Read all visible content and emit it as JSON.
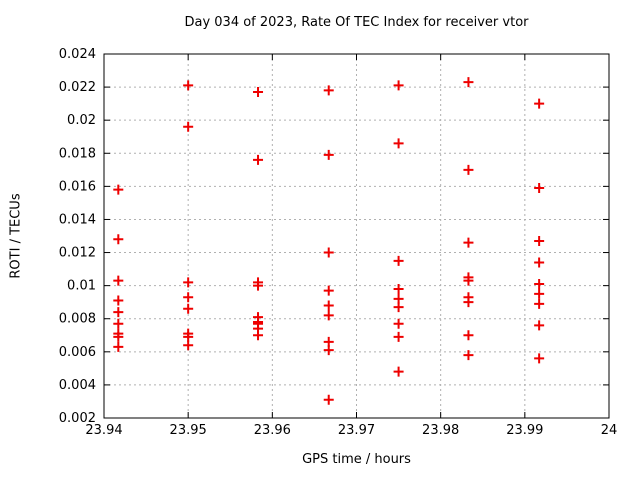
{
  "window": {
    "title": "Day 034 of 2023, Rate Of TEC Index for receiver vtor"
  },
  "chart_data": {
    "type": "scatter",
    "title": "Day 034 of 2023, Rate Of TEC Index for receiver vtor",
    "xlabel": "GPS time / hours",
    "ylabel": "ROTI / TECUs",
    "xlim": [
      23.94,
      24
    ],
    "ylim": [
      0.002,
      0.024
    ],
    "grid": true,
    "legend": "none",
    "marker": "plus",
    "marker_color": "#ee0000",
    "grid_color": "#b0b0b0",
    "border_color": "#000000",
    "xticks": {
      "values": [
        23.94,
        23.95,
        23.96,
        23.97,
        23.98,
        23.99,
        24
      ],
      "labels": [
        "23.94",
        "23.95",
        "23.96",
        "23.97",
        "23.98",
        "23.99",
        "24"
      ]
    },
    "yticks": {
      "values": [
        0.002,
        0.004,
        0.006,
        0.008,
        0.01,
        0.012,
        0.014,
        0.016,
        0.018,
        0.02,
        0.022,
        0.024
      ],
      "labels": [
        "0.002",
        "0.004",
        "0.006",
        "0.008",
        "0.01",
        "0.012",
        "0.014",
        "0.016",
        "0.018",
        "0.02",
        "0.022",
        "0.024"
      ]
    },
    "series": [
      {
        "name": "ROTI",
        "points": [
          [
            23.9417,
            0.0158
          ],
          [
            23.9417,
            0.0128
          ],
          [
            23.9417,
            0.0103
          ],
          [
            23.9417,
            0.0091
          ],
          [
            23.9417,
            0.0084
          ],
          [
            23.9417,
            0.0077
          ],
          [
            23.9417,
            0.0071
          ],
          [
            23.9417,
            0.0069
          ],
          [
            23.9417,
            0.0063
          ],
          [
            23.95,
            0.0221
          ],
          [
            23.95,
            0.0196
          ],
          [
            23.95,
            0.0102
          ],
          [
            23.95,
            0.0093
          ],
          [
            23.95,
            0.0086
          ],
          [
            23.95,
            0.0071
          ],
          [
            23.95,
            0.0069
          ],
          [
            23.95,
            0.0064
          ],
          [
            23.9583,
            0.0217
          ],
          [
            23.9583,
            0.0176
          ],
          [
            23.9583,
            0.0102
          ],
          [
            23.9583,
            0.01
          ],
          [
            23.9583,
            0.0081
          ],
          [
            23.9583,
            0.0078
          ],
          [
            23.9583,
            0.0077
          ],
          [
            23.9583,
            0.0074
          ],
          [
            23.9583,
            0.007
          ],
          [
            23.9667,
            0.0218
          ],
          [
            23.9667,
            0.0179
          ],
          [
            23.9667,
            0.012
          ],
          [
            23.9667,
            0.0097
          ],
          [
            23.9667,
            0.0088
          ],
          [
            23.9667,
            0.0082
          ],
          [
            23.9667,
            0.0066
          ],
          [
            23.9667,
            0.0061
          ],
          [
            23.9667,
            0.0031
          ],
          [
            23.975,
            0.0221
          ],
          [
            23.975,
            0.0186
          ],
          [
            23.975,
            0.0115
          ],
          [
            23.975,
            0.0098
          ],
          [
            23.975,
            0.0092
          ],
          [
            23.975,
            0.0087
          ],
          [
            23.975,
            0.0077
          ],
          [
            23.975,
            0.0069
          ],
          [
            23.975,
            0.0048
          ],
          [
            23.9833,
            0.0223
          ],
          [
            23.9833,
            0.017
          ],
          [
            23.9833,
            0.0126
          ],
          [
            23.9833,
            0.0105
          ],
          [
            23.9833,
            0.0103
          ],
          [
            23.9833,
            0.0093
          ],
          [
            23.9833,
            0.009
          ],
          [
            23.9833,
            0.007
          ],
          [
            23.9833,
            0.0058
          ],
          [
            23.9917,
            0.021
          ],
          [
            23.9917,
            0.0159
          ],
          [
            23.9917,
            0.0127
          ],
          [
            23.9917,
            0.0114
          ],
          [
            23.9917,
            0.0101
          ],
          [
            23.9917,
            0.0095
          ],
          [
            23.9917,
            0.0089
          ],
          [
            23.9917,
            0.0076
          ],
          [
            23.9917,
            0.0056
          ]
        ]
      }
    ]
  }
}
